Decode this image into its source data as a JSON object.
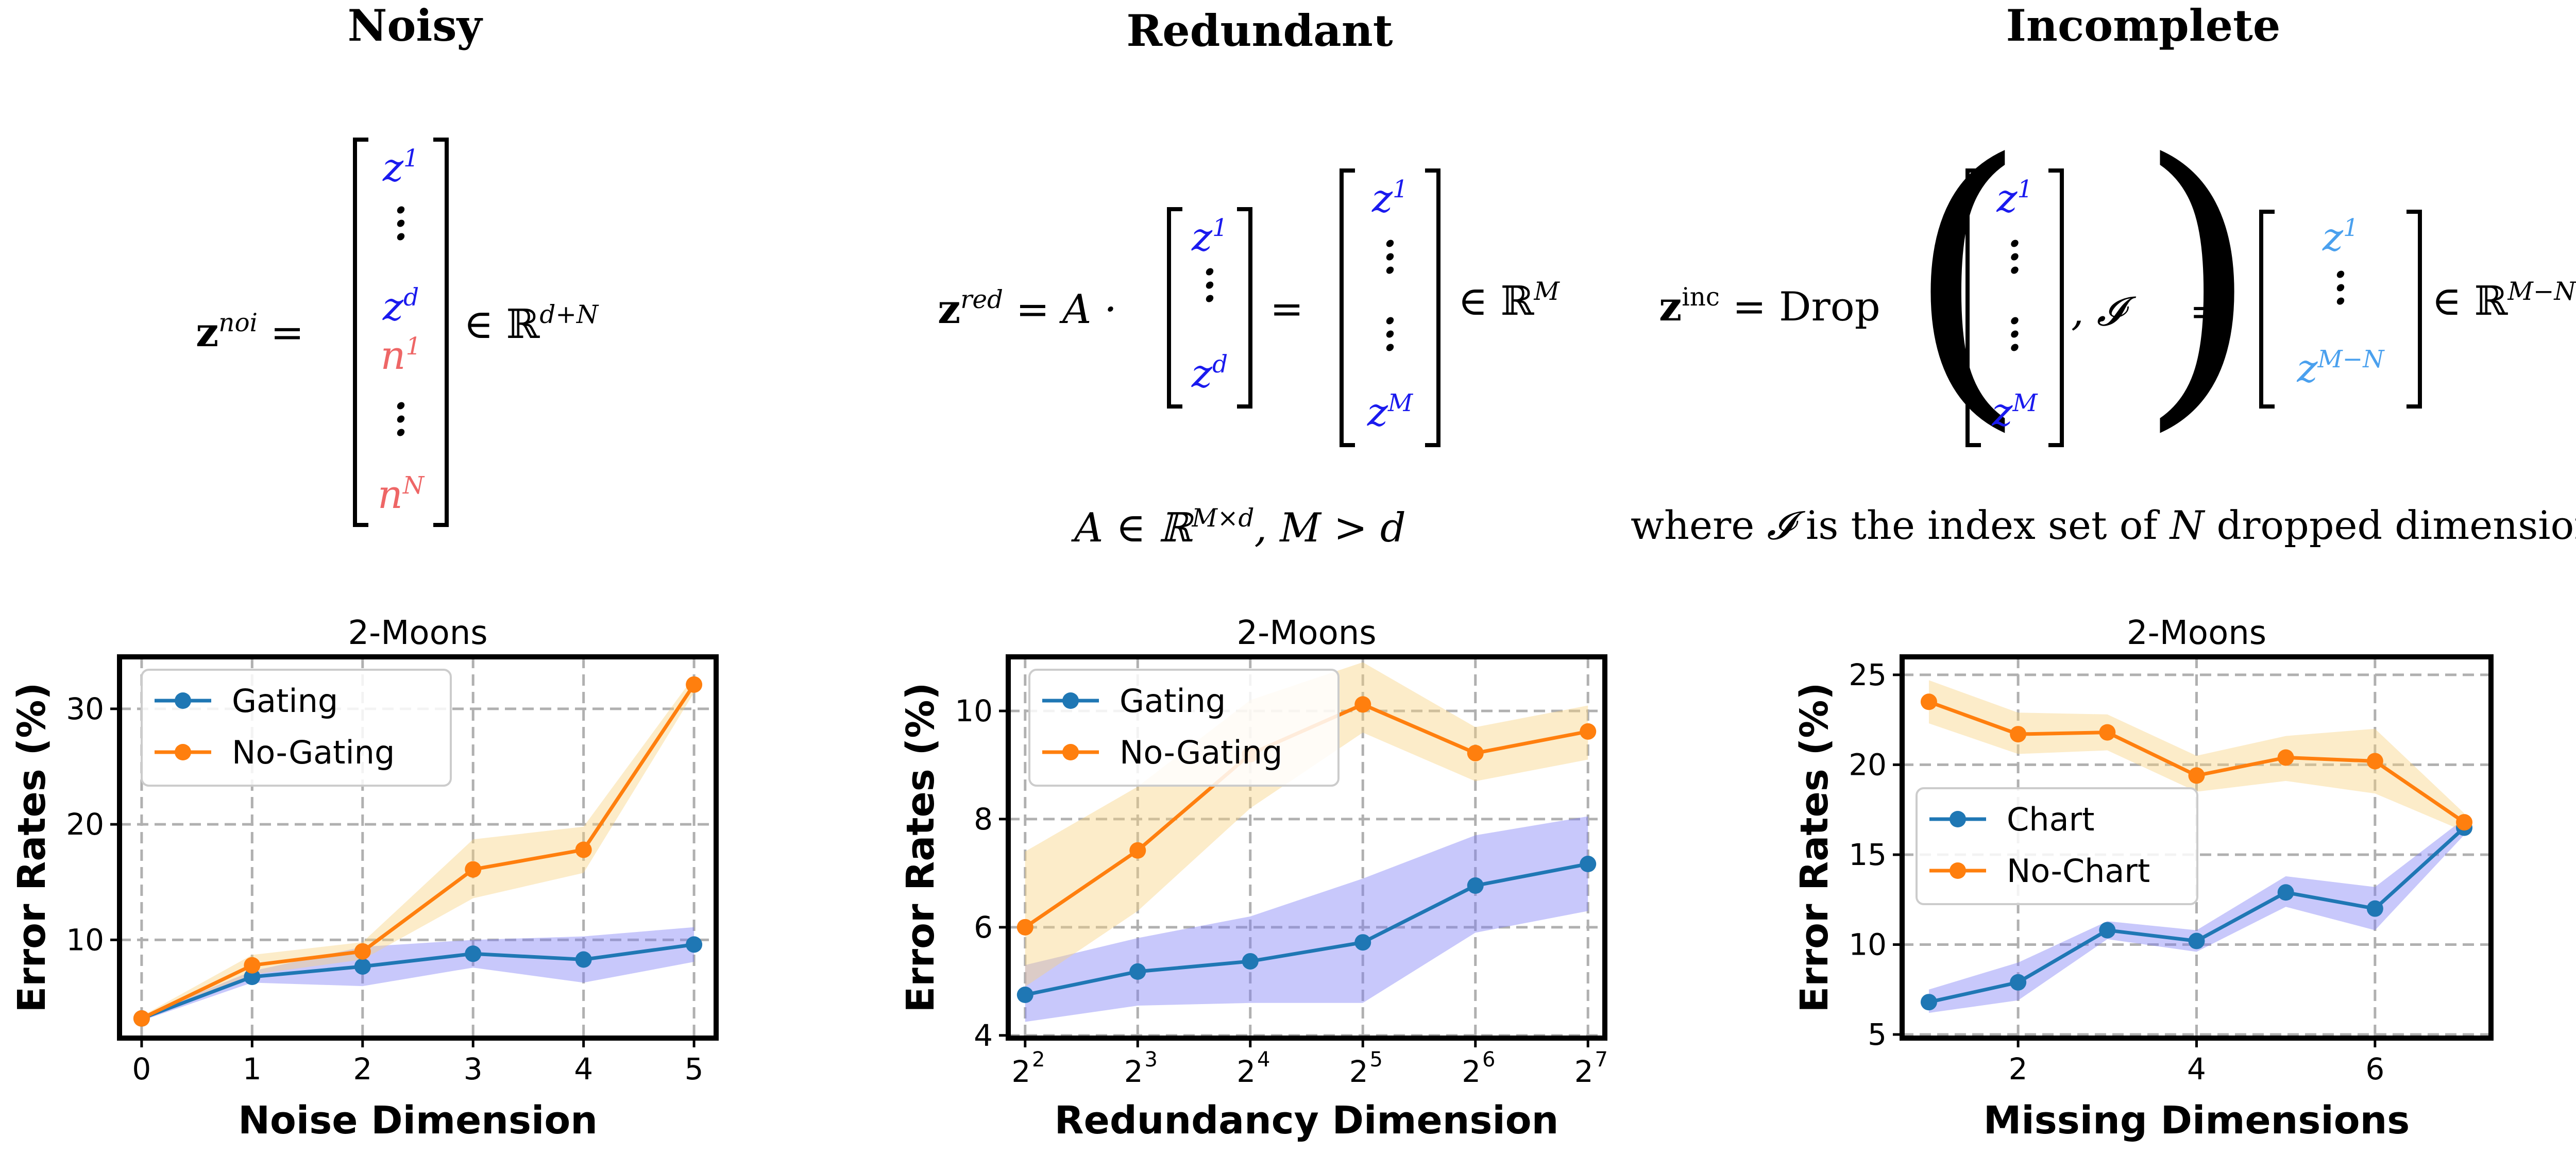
{
  "columns": [
    {
      "title": "Noisy"
    },
    {
      "title": "Redundant"
    },
    {
      "title": "Incomplete"
    }
  ],
  "equations": {
    "noisy": {
      "lhs_base": "z",
      "lhs_sup": "noi",
      "equals": "=",
      "entries": [
        "z",
        "1",
        "z",
        "d",
        "n",
        "1",
        "n",
        "N"
      ],
      "space": "∈ ℝ",
      "space_sup": "d+N"
    },
    "redundant": {
      "lhs_base": "z",
      "lhs_sup": "red",
      "mid": "= A ·",
      "equals": "=",
      "in_entries": [
        "z",
        "1",
        "z",
        "d"
      ],
      "out_entries": [
        "z",
        "1",
        "z",
        "M"
      ],
      "space": "∈ ℝ",
      "space_sup": "M",
      "condition": "A ∈ ℝ",
      "condition_sup": "M×d",
      "condition_tail": ", M > d"
    },
    "incomplete": {
      "lhs_base": "z",
      "lhs_sup": "inc",
      "mid": "= Drop",
      "index_set": ", 𝓘",
      "equals": "=",
      "in_entries": [
        "z",
        "1",
        "z",
        "M"
      ],
      "out_entries": [
        "z",
        "1",
        "z",
        "M−N"
      ],
      "space": "∈ ℝ",
      "space_sup": "M−N",
      "note_pre": "where",
      "note_sym": "𝓘",
      "note_mid": "is the index set of",
      "note_N": "N",
      "note_post": "dropped dimensions"
    }
  },
  "colors": {
    "blue": "#1f77b4",
    "orange": "#ff7f0e",
    "blue_band": "#7b7bf5",
    "orange_band": "#f9d27e"
  },
  "chart_data": [
    {
      "type": "line",
      "title": "2-Moons",
      "xlabel": "Noise Dimension",
      "ylabel": "Error Rates (%)",
      "x": [
        0,
        1,
        2,
        3,
        4,
        5
      ],
      "xticks": [
        0,
        1,
        2,
        3,
        4,
        5
      ],
      "xtick_labels": [
        "0",
        "1",
        "2",
        "3",
        "4",
        "5"
      ],
      "xlim": [
        -0.2,
        5.2
      ],
      "ylim": [
        1.5,
        34.5
      ],
      "yticks": [
        10,
        20,
        30
      ],
      "grid": true,
      "legend_position": "upper-left",
      "series": [
        {
          "name": "Gating",
          "color": "blue",
          "values": [
            3.2,
            6.8,
            7.7,
            8.8,
            8.3,
            9.6
          ],
          "lower": [
            3.0,
            6.3,
            6.0,
            7.6,
            6.3,
            8.1
          ],
          "upper": [
            3.4,
            7.3,
            9.4,
            10.0,
            10.3,
            11.1
          ]
        },
        {
          "name": "No-Gating",
          "color": "orange",
          "values": [
            3.2,
            7.8,
            9.0,
            16.1,
            17.8,
            32.1
          ],
          "lower": [
            3.0,
            7.0,
            8.3,
            13.6,
            15.8,
            31.4
          ],
          "upper": [
            3.4,
            8.7,
            9.8,
            18.7,
            19.8,
            32.8
          ]
        }
      ]
    },
    {
      "type": "line",
      "title": "2-Moons",
      "xlabel": "Redundancy Dimension",
      "ylabel": "Error Rates (%)",
      "x": [
        2,
        3,
        4,
        5,
        6,
        7
      ],
      "xticks": [
        2,
        3,
        4,
        5,
        6,
        7
      ],
      "xtick_labels": [
        "2",
        "3",
        "4",
        "5",
        "6",
        "7"
      ],
      "xtick_base": "2",
      "xlim": [
        1.85,
        7.15
      ],
      "ylim": [
        3.95,
        11.0
      ],
      "yticks": [
        4,
        6,
        8,
        10
      ],
      "grid": true,
      "legend_position": "upper-left",
      "series": [
        {
          "name": "Gating",
          "color": "blue",
          "values": [
            4.75,
            5.18,
            5.37,
            5.72,
            6.77,
            7.17
          ],
          "lower": [
            4.25,
            4.55,
            4.6,
            4.6,
            5.9,
            6.3
          ],
          "upper": [
            5.3,
            5.8,
            6.2,
            6.9,
            7.7,
            8.05
          ]
        },
        {
          "name": "No-Gating",
          "color": "orange",
          "values": [
            6.0,
            7.42,
            9.2,
            10.12,
            9.22,
            9.62
          ],
          "lower": [
            4.9,
            6.3,
            8.2,
            9.6,
            8.7,
            9.1
          ],
          "upper": [
            7.4,
            8.6,
            10.2,
            10.9,
            9.7,
            10.1
          ]
        }
      ]
    },
    {
      "type": "line",
      "title": "2-Moons",
      "xlabel": "Missing Dimensions",
      "ylabel": "Error Rates (%)",
      "x": [
        1,
        2,
        3,
        4,
        5,
        6,
        7
      ],
      "xticks": [
        2,
        4,
        6
      ],
      "xtick_labels": [
        "2",
        "4",
        "6"
      ],
      "xlim": [
        0.7,
        7.3
      ],
      "ylim": [
        4.8,
        26.0
      ],
      "yticks": [
        5,
        10,
        15,
        20,
        25
      ],
      "grid": true,
      "legend_position": "center-left",
      "series": [
        {
          "name": "Chart",
          "color": "blue",
          "values": [
            6.8,
            7.9,
            10.8,
            10.2,
            12.9,
            12.0,
            16.5
          ],
          "lower": [
            6.2,
            6.9,
            10.3,
            9.6,
            12.1,
            10.8,
            16.1
          ],
          "upper": [
            7.5,
            9.0,
            11.3,
            10.8,
            13.8,
            13.2,
            17.0
          ]
        },
        {
          "name": "No-Chart",
          "color": "orange",
          "values": [
            23.5,
            21.7,
            21.8,
            19.4,
            20.4,
            20.2,
            16.8
          ],
          "lower": [
            22.3,
            20.6,
            20.8,
            18.5,
            19.1,
            18.4,
            16.3
          ],
          "upper": [
            24.7,
            22.9,
            22.8,
            20.5,
            21.6,
            22.0,
            17.3
          ]
        }
      ]
    }
  ]
}
